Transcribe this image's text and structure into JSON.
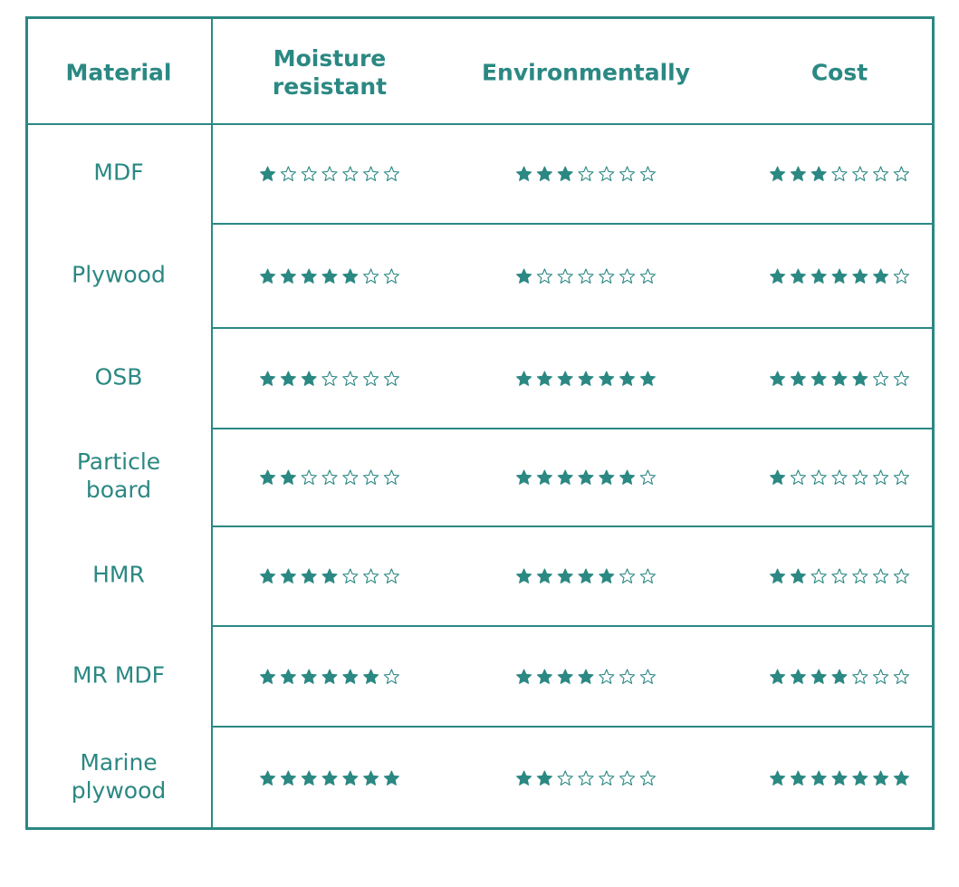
{
  "table": {
    "header": [
      "Material",
      "Moisture resistant",
      "Environmentally",
      "Cost"
    ],
    "scale_max": 7,
    "rows": [
      {
        "material": "MDF",
        "ratings": [
          1,
          3,
          3
        ]
      },
      {
        "material": "Plywood",
        "ratings": [
          5,
          1,
          6
        ]
      },
      {
        "material": "OSB",
        "ratings": [
          3,
          7,
          5
        ]
      },
      {
        "material": "Particle board",
        "ratings": [
          2,
          6,
          1
        ]
      },
      {
        "material": "HMR",
        "ratings": [
          4,
          5,
          2
        ]
      },
      {
        "material": "MR MDF",
        "ratings": [
          6,
          4,
          4
        ]
      },
      {
        "material": "Marine plywood",
        "ratings": [
          7,
          2,
          7
        ]
      }
    ]
  }
}
